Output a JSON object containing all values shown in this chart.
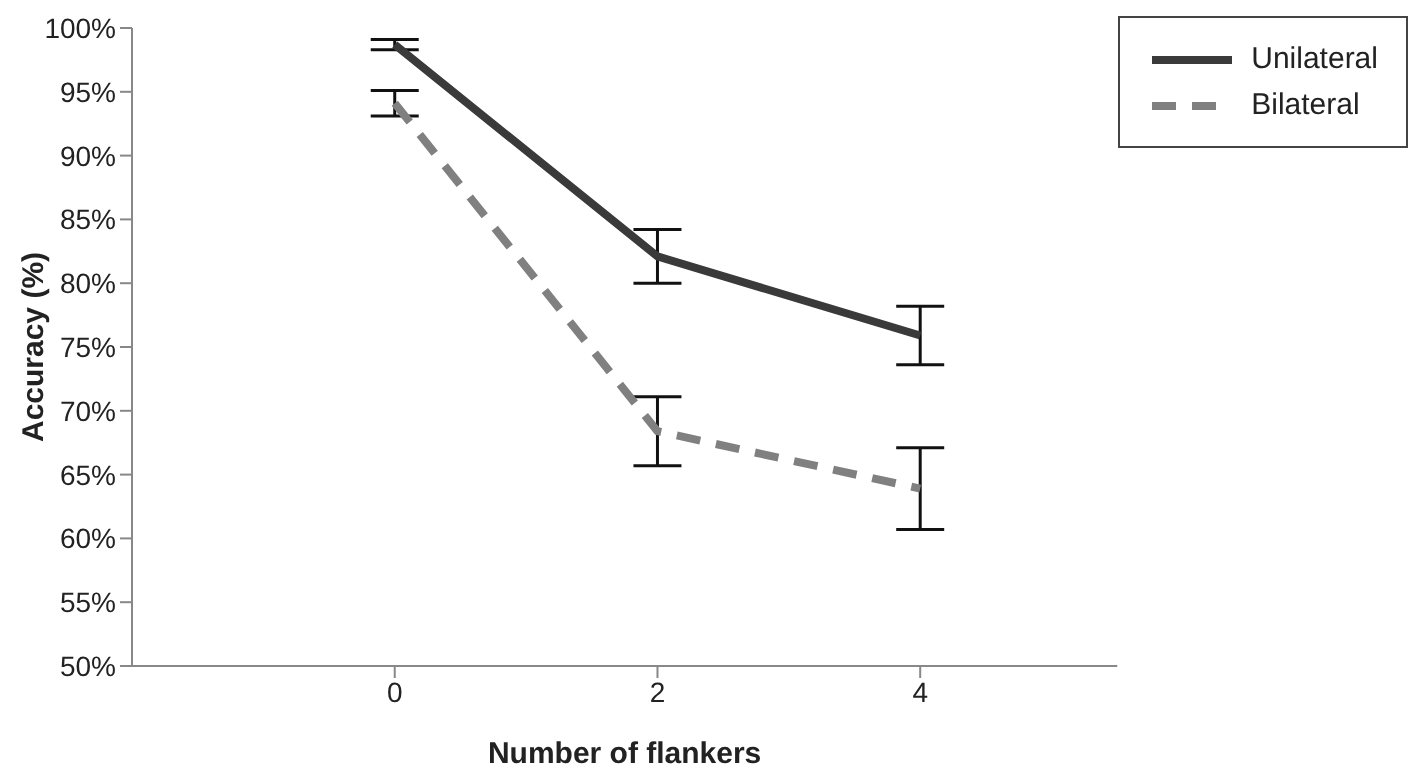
{
  "chart_data": {
    "type": "line",
    "xlabel": "Number of flankers",
    "ylabel": "Accuracy (%)",
    "x": [
      0,
      2,
      4
    ],
    "xlim": [
      -2,
      5.5
    ],
    "xticks": [
      0,
      2,
      4
    ],
    "series": [
      {
        "name": "Unilateral",
        "color": "#3a3a3a",
        "line_style": "solid",
        "values": [
          98.7,
          82.1,
          75.9
        ],
        "errors": [
          0.4,
          2.1,
          2.3
        ]
      },
      {
        "name": "Bilateral",
        "color": "#808080",
        "line_style": "dashed",
        "values": [
          94.1,
          68.4,
          63.9
        ],
        "errors": [
          1.0,
          2.7,
          3.2
        ]
      }
    ],
    "ylim": [
      50,
      100
    ],
    "yticks": [
      {
        "value": 50,
        "label": "50%"
      },
      {
        "value": 55,
        "label": "55%"
      },
      {
        "value": 60,
        "label": "60%"
      },
      {
        "value": 65,
        "label": "65%"
      },
      {
        "value": 70,
        "label": "70%"
      },
      {
        "value": 75,
        "label": "75%"
      },
      {
        "value": 80,
        "label": "80%"
      },
      {
        "value": 85,
        "label": "85%"
      },
      {
        "value": 90,
        "label": "90%"
      },
      {
        "value": 95,
        "label": "95%"
      },
      {
        "value": 100,
        "label": "100%"
      }
    ],
    "grid": false,
    "legend": "top right",
    "marker": "none"
  }
}
